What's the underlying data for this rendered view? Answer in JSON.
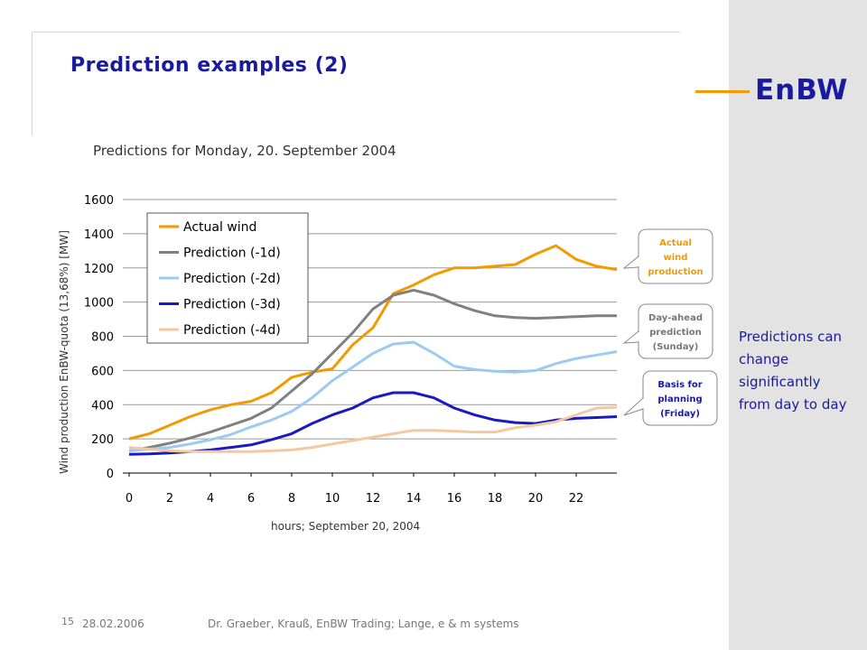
{
  "slide": {
    "title": "Prediction examples (2)",
    "logo": "EnBW",
    "subtitle": "Predictions for Monday, 20. September 2004",
    "side_note": "Predictions can change significantly from day to day",
    "footer": {
      "page_number": "15",
      "date": "28.02.2006",
      "author": "Dr. Graeber, Krauß, EnBW Trading; Lange, e & m systems"
    }
  },
  "colors": {
    "title": "#1a1aa0",
    "logo_line": "#f29a00",
    "sidebar": "#e3e3e3",
    "callout_border": "#8a8a8a"
  },
  "callouts": [
    {
      "lines": [
        "Actual",
        "wind",
        "production"
      ],
      "color": "#f29a00",
      "series": "Actual wind"
    },
    {
      "lines": [
        "Day-ahead",
        "prediction",
        "(Sunday)"
      ],
      "color": "#777777",
      "series": "Prediction (-1d)"
    },
    {
      "lines": [
        "Basis for",
        "planning",
        "(Friday)"
      ],
      "color": "#1a1aa0",
      "series": "Prediction (-3d)"
    }
  ],
  "chart_data": {
    "type": "line",
    "xlabel": "hours; September 20, 2004",
    "ylabel": "Wind production EnBW-quota (13,68%)   [MW]",
    "xlim": [
      0,
      24
    ],
    "ylim": [
      0,
      1600
    ],
    "x_ticks": [
      0,
      2,
      4,
      6,
      8,
      10,
      12,
      14,
      16,
      18,
      20,
      22
    ],
    "y_ticks": [
      0,
      200,
      400,
      600,
      800,
      1000,
      1200,
      1400,
      1600
    ],
    "grid": "horizontal",
    "legend_position": "top-left",
    "x": [
      0,
      1,
      2,
      3,
      4,
      5,
      6,
      7,
      8,
      9,
      10,
      11,
      12,
      13,
      14,
      15,
      16,
      17,
      18,
      19,
      20,
      21,
      22,
      23,
      24
    ],
    "series": [
      {
        "name": "Actual wind",
        "color": "#f29a00",
        "values": [
          200,
          230,
          280,
          330,
          370,
          400,
          420,
          470,
          560,
          590,
          610,
          750,
          850,
          1050,
          1100,
          1160,
          1200,
          1200,
          1210,
          1220,
          1280,
          1330,
          1250,
          1210,
          1190
        ]
      },
      {
        "name": "Prediction (-1d)",
        "color": "#808080",
        "values": [
          130,
          150,
          175,
          205,
          240,
          280,
          320,
          380,
          480,
          580,
          700,
          820,
          960,
          1040,
          1070,
          1040,
          990,
          950,
          920,
          910,
          905,
          910,
          915,
          920,
          920
        ]
      },
      {
        "name": "Prediction (-2d)",
        "color": "#9ccaf2",
        "values": [
          130,
          140,
          150,
          170,
          195,
          225,
          270,
          310,
          360,
          440,
          540,
          620,
          700,
          755,
          765,
          700,
          625,
          605,
          595,
          590,
          600,
          640,
          670,
          690,
          710
        ]
      },
      {
        "name": "Prediction (-3d)",
        "color": "#1a1ac0",
        "values": [
          110,
          112,
          118,
          125,
          135,
          150,
          165,
          195,
          230,
          290,
          340,
          380,
          440,
          470,
          470,
          440,
          380,
          340,
          310,
          295,
          290,
          310,
          320,
          325,
          330
        ]
      },
      {
        "name": "Prediction (-4d)",
        "color": "#f5c8a0",
        "values": [
          150,
          140,
          130,
          125,
          125,
          125,
          125,
          130,
          135,
          150,
          170,
          190,
          210,
          230,
          250,
          250,
          245,
          240,
          240,
          265,
          280,
          300,
          340,
          380,
          385
        ]
      }
    ]
  }
}
